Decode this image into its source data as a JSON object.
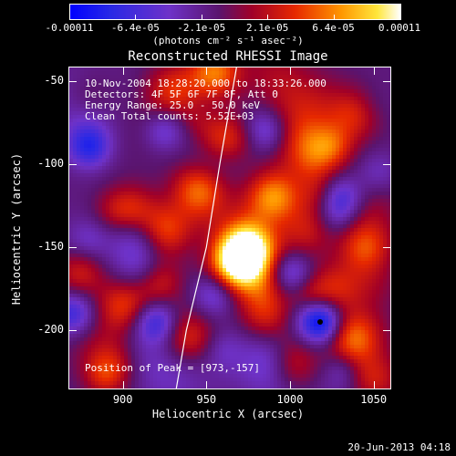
{
  "colorbar": {
    "tick_labels": [
      "-0.00011",
      "-6.4e-05",
      "-2.1e-05",
      "2.1e-05",
      "6.4e-05",
      "0.00011"
    ],
    "units": "(photons cm⁻² s⁻¹ asec⁻²)",
    "min": -0.00011,
    "max": 0.00011
  },
  "title": "Reconstructed RHESSI Image",
  "annotations": {
    "time_range": "10-Nov-2004 18:28:20.000 to 18:33:26.000",
    "detectors": "Detectors: 4F 5F 6F 7F 8F, Att 0",
    "energy": "Energy Range: 25.0 - 50.0 keV",
    "method": "Clean    Total counts: 5.52E+03",
    "peak": "Position of Peak = [973,-157]"
  },
  "axes": {
    "xlabel": "Heliocentric X (arcsec)",
    "ylabel": "Heliocentric Y (arcsec)",
    "xticks": [
      "900",
      "950",
      "1000",
      "1050"
    ],
    "yticks": [
      "-50",
      "-100",
      "-150",
      "-200"
    ]
  },
  "footer": {
    "date": "20-Jun-2013 04:18"
  },
  "chart_data": {
    "type": "heatmap",
    "title": "Reconstructed RHESSI Image",
    "xlabel": "Heliocentric X (arcsec)",
    "ylabel": "Heliocentric Y (arcsec)",
    "xlim": [
      868,
      1060
    ],
    "ylim": [
      -235,
      -42
    ],
    "xticks": [
      900,
      950,
      1000,
      1050
    ],
    "yticks": [
      -50,
      -100,
      -150,
      -200
    ],
    "colorbar_range": [
      -0.00011,
      0.00011
    ],
    "colorbar_ticks": [
      -0.00011,
      -6.4e-05,
      -2.1e-05,
      2.1e-05,
      6.4e-05,
      0.00011
    ],
    "peak": [
      973,
      -157
    ],
    "limb_curve": [
      [
        968,
        -42
      ],
      [
        958,
        -100
      ],
      [
        950,
        -150
      ],
      [
        938,
        -200
      ],
      [
        932,
        -235
      ]
    ],
    "blobs": [
      {
        "x": 975,
        "y": -150,
        "level": 1.0
      },
      {
        "x": 968,
        "y": -160,
        "level": 0.9
      },
      {
        "x": 990,
        "y": -120,
        "level": 0.75
      },
      {
        "x": 945,
        "y": -115,
        "level": 0.6
      },
      {
        "x": 925,
        "y": -140,
        "level": 0.55
      },
      {
        "x": 905,
        "y": -128,
        "level": 0.5
      },
      {
        "x": 900,
        "y": -185,
        "level": 0.55
      },
      {
        "x": 940,
        "y": -205,
        "level": 0.45
      },
      {
        "x": 960,
        "y": -85,
        "level": 0.55
      },
      {
        "x": 1010,
        "y": -95,
        "level": 0.5
      },
      {
        "x": 1040,
        "y": -70,
        "level": 0.45
      },
      {
        "x": 1045,
        "y": -150,
        "level": 0.55
      },
      {
        "x": 1038,
        "y": -205,
        "level": 0.6
      },
      {
        "x": 1000,
        "y": -220,
        "level": 0.5
      },
      {
        "x": 1050,
        "y": -230,
        "level": 0.45
      },
      {
        "x": 930,
        "y": -55,
        "level": 0.45
      },
      {
        "x": 955,
        "y": -45,
        "level": 0.7
      },
      {
        "x": 880,
        "y": -60,
        "level": 0.3
      },
      {
        "x": 1025,
        "y": -175,
        "level": 0.4
      },
      {
        "x": 1010,
        "y": -140,
        "level": 0.35
      },
      {
        "x": 920,
        "y": -170,
        "level": 0.35
      },
      {
        "x": 895,
        "y": -222,
        "level": 0.35
      },
      {
        "x": 985,
        "y": -192,
        "level": 0.4
      }
    ],
    "minima": [
      {
        "x": 1018,
        "y": -195,
        "level": -0.9
      },
      {
        "x": 920,
        "y": -195,
        "level": -0.6
      },
      {
        "x": 880,
        "y": -90,
        "level": -0.55
      },
      {
        "x": 1000,
        "y": -165,
        "level": -0.5
      },
      {
        "x": 1030,
        "y": -120,
        "level": -0.5
      },
      {
        "x": 925,
        "y": -80,
        "level": -0.45
      },
      {
        "x": 985,
        "y": -80,
        "level": -0.45
      },
      {
        "x": 870,
        "y": -190,
        "level": -0.5
      },
      {
        "x": 955,
        "y": -178,
        "level": -0.4
      }
    ]
  }
}
